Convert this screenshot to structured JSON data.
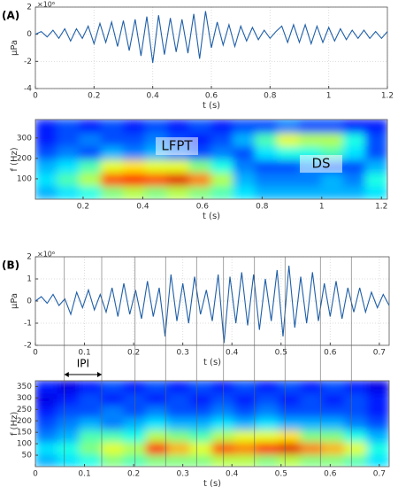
{
  "chart_data": [
    {
      "type": "line",
      "panel": "(A)",
      "y_label": "μPa",
      "x_label": "t (s)",
      "y_multiplier": "×10⁶",
      "x": [
        0,
        0.02,
        0.04,
        0.06,
        0.08,
        0.1,
        0.12,
        0.14,
        0.16,
        0.18,
        0.2,
        0.22,
        0.24,
        0.26,
        0.28,
        0.3,
        0.32,
        0.34,
        0.36,
        0.38,
        0.4,
        0.42,
        0.44,
        0.46,
        0.48,
        0.5,
        0.52,
        0.54,
        0.56,
        0.58,
        0.6,
        0.62,
        0.64,
        0.66,
        0.68,
        0.7,
        0.72,
        0.74,
        0.76,
        0.78,
        0.8,
        0.82,
        0.84,
        0.86,
        0.88,
        0.9,
        0.92,
        0.94,
        0.96,
        0.98,
        1.0,
        1.02,
        1.04,
        1.06,
        1.08,
        1.1,
        1.12,
        1.14,
        1.16,
        1.18,
        1.2
      ],
      "values": [
        0,
        0.2,
        -0.2,
        0.3,
        -0.3,
        0.4,
        -0.5,
        0.4,
        -0.3,
        0.6,
        -0.7,
        0.8,
        -0.6,
        0.9,
        -0.9,
        1.0,
        -1.2,
        1.1,
        -1.6,
        1.3,
        -2.1,
        1.4,
        -1.5,
        1.2,
        -1.3,
        1.1,
        -1.4,
        1.5,
        -1.8,
        1.7,
        -1.0,
        0.9,
        -0.8,
        0.7,
        -0.9,
        0.6,
        -0.5,
        0.5,
        -0.4,
        0.3,
        -0.3,
        0.2,
        0.6,
        -0.6,
        0.7,
        -0.6,
        0.7,
        -0.7,
        0.6,
        -0.6,
        0.5,
        -0.5,
        0.4,
        -0.4,
        0.3,
        -0.3,
        0.3,
        -0.3,
        0.2,
        -0.3,
        0.2
      ],
      "color": "#1f5fa8",
      "xlim": [
        0,
        1.2
      ],
      "ylim": [
        -4,
        2
      ],
      "xticks": [
        0,
        0.2,
        0.4,
        0.6,
        0.8,
        1,
        1.2
      ],
      "yticks": [
        -4,
        -2,
        0,
        2
      ],
      "grid": true
    },
    {
      "type": "heatmap",
      "y_label": "f (Hz)",
      "x_label": "t (s)",
      "colormap": "jet",
      "annotations": [
        "LFPT",
        "DS"
      ],
      "xlim": [
        0.04,
        1.22
      ],
      "ylim": [
        0,
        390
      ],
      "xticks": [
        0.2,
        0.4,
        0.6,
        0.8,
        1,
        1.2
      ],
      "yticks": [
        100,
        200,
        300
      ],
      "z": [
        [
          0.3,
          0.35,
          0.4,
          0.5,
          0.55,
          0.5,
          0.55,
          0.5,
          0.45,
          0.35,
          0.3,
          0.3,
          0.3,
          0.3,
          0.3,
          0.35
        ],
        [
          0.35,
          0.45,
          0.55,
          0.8,
          0.85,
          0.8,
          0.9,
          0.75,
          0.55,
          0.3,
          0.25,
          0.25,
          0.25,
          0.3,
          0.25,
          0.4
        ],
        [
          0.3,
          0.35,
          0.45,
          0.6,
          0.65,
          0.6,
          0.6,
          0.5,
          0.4,
          0.25,
          0.2,
          0.2,
          0.25,
          0.2,
          0.2,
          0.3
        ],
        [
          0.2,
          0.25,
          0.2,
          0.3,
          0.25,
          0.3,
          0.25,
          0.2,
          0.25,
          0.2,
          0.35,
          0.4,
          0.4,
          0.45,
          0.35,
          0.2
        ],
        [
          0.15,
          0.2,
          0.25,
          0.2,
          0.2,
          0.25,
          0.2,
          0.15,
          0.2,
          0.3,
          0.45,
          0.6,
          0.55,
          0.55,
          0.4,
          0.2
        ],
        [
          0.15,
          0.2,
          0.15,
          0.2,
          0.15,
          0.2,
          0.15,
          0.2,
          0.15,
          0.2,
          0.2,
          0.25,
          0.2,
          0.2,
          0.15,
          0.15
        ]
      ]
    },
    {
      "type": "line",
      "panel": "(B)",
      "y_label": "μPa",
      "x_label": "t (s)",
      "y_multiplier": "×10⁶",
      "annotation": "IPI",
      "pulse_times": [
        0.059,
        0.135,
        0.203,
        0.265,
        0.328,
        0.383,
        0.446,
        0.508,
        0.58,
        0.643
      ],
      "x": [
        0,
        0.012,
        0.024,
        0.036,
        0.048,
        0.06,
        0.072,
        0.084,
        0.096,
        0.108,
        0.12,
        0.132,
        0.144,
        0.156,
        0.168,
        0.18,
        0.192,
        0.204,
        0.216,
        0.228,
        0.24,
        0.252,
        0.264,
        0.276,
        0.288,
        0.3,
        0.312,
        0.324,
        0.336,
        0.348,
        0.36,
        0.372,
        0.384,
        0.396,
        0.408,
        0.42,
        0.432,
        0.444,
        0.456,
        0.468,
        0.48,
        0.492,
        0.504,
        0.516,
        0.528,
        0.54,
        0.552,
        0.564,
        0.576,
        0.588,
        0.6,
        0.612,
        0.624,
        0.636,
        0.648,
        0.66,
        0.672,
        0.684,
        0.696,
        0.708,
        0.72
      ],
      "values": [
        0,
        0.2,
        -0.1,
        0.3,
        -0.2,
        0.1,
        -0.6,
        0.4,
        -0.3,
        0.5,
        -0.4,
        0.3,
        -0.5,
        0.6,
        -0.7,
        0.8,
        -0.6,
        0.5,
        -0.8,
        0.9,
        -0.7,
        0.6,
        -1.6,
        1.2,
        -0.9,
        0.8,
        -1.0,
        1.1,
        -0.6,
        0.5,
        -0.9,
        1.2,
        -1.9,
        1.1,
        -1.0,
        1.3,
        -1.1,
        1.2,
        -1.3,
        1.0,
        -0.9,
        1.4,
        -1.6,
        1.6,
        -1.2,
        1.1,
        -1.0,
        1.3,
        -0.9,
        0.8,
        -0.7,
        0.9,
        -0.8,
        0.6,
        -0.5,
        0.6,
        -0.5,
        0.4,
        -0.3,
        0.3,
        -0.2
      ],
      "color": "#1f5fa8",
      "xlim": [
        0,
        0.72
      ],
      "ylim": [
        -2,
        2
      ],
      "xticks": [
        0,
        0.1,
        0.2,
        0.3,
        0.4,
        0.5,
        0.6,
        0.7
      ],
      "yticks": [
        -2,
        -1,
        0,
        1,
        2
      ],
      "grid": true
    },
    {
      "type": "heatmap",
      "y_label": "f (Hz)",
      "x_label": "t (s)",
      "colormap": "jet",
      "xlim": [
        0,
        0.72
      ],
      "ylim": [
        0,
        375
      ],
      "xticks": [
        0,
        0.1,
        0.2,
        0.3,
        0.4,
        0.5,
        0.6,
        0.7
      ],
      "yticks": [
        50,
        100,
        150,
        200,
        250,
        300,
        350
      ],
      "z": [
        [
          0.3,
          0.35,
          0.4,
          0.5,
          0.45,
          0.5,
          0.5,
          0.5,
          0.55,
          0.55,
          0.5,
          0.55,
          0.5,
          0.5,
          0.45,
          0.35
        ],
        [
          0.35,
          0.4,
          0.5,
          0.6,
          0.55,
          0.85,
          0.7,
          0.6,
          0.8,
          0.75,
          0.85,
          0.9,
          0.75,
          0.7,
          0.6,
          0.4
        ],
        [
          0.25,
          0.3,
          0.45,
          0.45,
          0.4,
          0.55,
          0.5,
          0.45,
          0.55,
          0.6,
          0.6,
          0.65,
          0.5,
          0.5,
          0.4,
          0.3
        ],
        [
          0.2,
          0.25,
          0.3,
          0.25,
          0.3,
          0.35,
          0.3,
          0.3,
          0.35,
          0.3,
          0.35,
          0.3,
          0.3,
          0.3,
          0.25,
          0.2
        ],
        [
          0.15,
          0.2,
          0.2,
          0.25,
          0.2,
          0.25,
          0.2,
          0.2,
          0.25,
          0.2,
          0.25,
          0.2,
          0.2,
          0.2,
          0.2,
          0.15
        ],
        [
          0.1,
          0.15,
          0.2,
          0.15,
          0.2,
          0.15,
          0.2,
          0.15,
          0.2,
          0.15,
          0.2,
          0.15,
          0.2,
          0.15,
          0.2,
          0.15
        ],
        [
          0.15,
          0.1,
          0.15,
          0.2,
          0.15,
          0.2,
          0.15,
          0.2,
          0.15,
          0.2,
          0.15,
          0.2,
          0.15,
          0.2,
          0.15,
          0.1
        ]
      ]
    }
  ]
}
